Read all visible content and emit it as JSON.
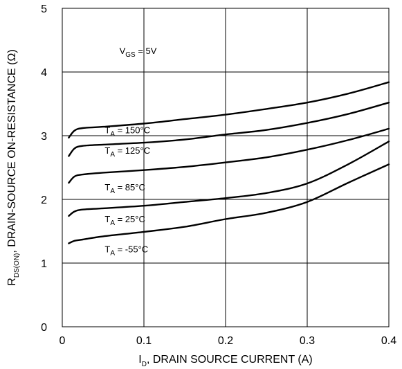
{
  "chart_data": {
    "type": "line",
    "title": "",
    "xlabel": {
      "main": "I",
      "sub": "D",
      "rest": ", DRAIN SOURCE CURRENT (A)"
    },
    "ylabel": {
      "main": "R",
      "sub": "DS(ON)",
      "rest": ", DRAIN-SOURCE ON-RESISTANCE (Ω)"
    },
    "xlim": [
      0,
      0.4
    ],
    "ylim": [
      0,
      5
    ],
    "x_ticks": [
      0,
      0.1,
      0.2,
      0.3,
      0.4
    ],
    "x_tick_labels": [
      "0",
      "0.1",
      "0.2",
      "0.3",
      "0.4"
    ],
    "y_ticks": [
      0,
      1,
      2,
      3,
      4,
      5
    ],
    "y_tick_labels": [
      "0",
      "1",
      "2",
      "3",
      "4",
      "5"
    ],
    "grid": true,
    "condition": {
      "main": "V",
      "sub": "GS",
      "rest": " = 5V",
      "x": 0.07,
      "y": 4.28
    },
    "series": [
      {
        "name": "150°C",
        "label": {
          "main": "T",
          "sub": "A",
          "rest": " = 150°C"
        },
        "label_at": [
          0.052,
          3.04
        ],
        "points": [
          [
            0.008,
            2.97
          ],
          [
            0.015,
            3.08
          ],
          [
            0.025,
            3.12
          ],
          [
            0.05,
            3.14
          ],
          [
            0.1,
            3.19
          ],
          [
            0.15,
            3.26
          ],
          [
            0.2,
            3.33
          ],
          [
            0.25,
            3.42
          ],
          [
            0.3,
            3.52
          ],
          [
            0.35,
            3.66
          ],
          [
            0.4,
            3.84
          ]
        ]
      },
      {
        "name": "125°C",
        "label": {
          "main": "T",
          "sub": "A",
          "rest": " = 125°C"
        },
        "label_at": [
          0.052,
          2.72
        ],
        "points": [
          [
            0.008,
            2.68
          ],
          [
            0.015,
            2.8
          ],
          [
            0.025,
            2.84
          ],
          [
            0.05,
            2.86
          ],
          [
            0.1,
            2.89
          ],
          [
            0.15,
            2.94
          ],
          [
            0.2,
            3.02
          ],
          [
            0.25,
            3.09
          ],
          [
            0.3,
            3.2
          ],
          [
            0.35,
            3.34
          ],
          [
            0.4,
            3.52
          ]
        ]
      },
      {
        "name": "85°C",
        "label": {
          "main": "T",
          "sub": "A",
          "rest": " = 85°C"
        },
        "label_at": [
          0.052,
          2.14
        ],
        "points": [
          [
            0.008,
            2.26
          ],
          [
            0.015,
            2.36
          ],
          [
            0.025,
            2.39
          ],
          [
            0.05,
            2.42
          ],
          [
            0.1,
            2.46
          ],
          [
            0.15,
            2.51
          ],
          [
            0.2,
            2.58
          ],
          [
            0.25,
            2.66
          ],
          [
            0.3,
            2.78
          ],
          [
            0.35,
            2.93
          ],
          [
            0.4,
            3.11
          ]
        ]
      },
      {
        "name": "25°C",
        "label": {
          "main": "T",
          "sub": "A",
          "rest": " = 25°C"
        },
        "label_at": [
          0.052,
          1.64
        ],
        "points": [
          [
            0.008,
            1.74
          ],
          [
            0.015,
            1.81
          ],
          [
            0.025,
            1.84
          ],
          [
            0.05,
            1.86
          ],
          [
            0.1,
            1.9
          ],
          [
            0.15,
            1.96
          ],
          [
            0.2,
            2.02
          ],
          [
            0.25,
            2.1
          ],
          [
            0.3,
            2.25
          ],
          [
            0.35,
            2.55
          ],
          [
            0.4,
            2.91
          ]
        ]
      },
      {
        "name": "-55°C",
        "label": {
          "main": "T",
          "sub": "A",
          "rest": " = -55°C"
        },
        "label_at": [
          0.052,
          1.17
        ],
        "points": [
          [
            0.008,
            1.31
          ],
          [
            0.015,
            1.35
          ],
          [
            0.025,
            1.37
          ],
          [
            0.05,
            1.42
          ],
          [
            0.1,
            1.49
          ],
          [
            0.15,
            1.57
          ],
          [
            0.2,
            1.69
          ],
          [
            0.25,
            1.79
          ],
          [
            0.3,
            1.96
          ],
          [
            0.35,
            2.26
          ],
          [
            0.4,
            2.55
          ]
        ]
      }
    ]
  }
}
